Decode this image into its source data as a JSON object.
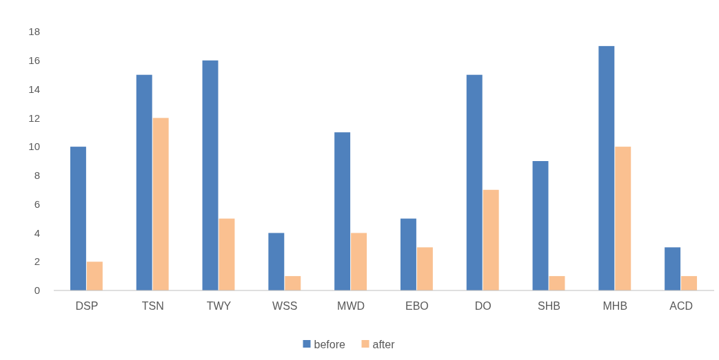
{
  "chart_data": {
    "type": "bar",
    "categories": [
      "DSP",
      "TSN",
      "TWY",
      "WSS",
      "MWD",
      "EBO",
      "DO",
      "SHB",
      "MHB",
      "ACD"
    ],
    "series": [
      {
        "name": "before",
        "color": "#4f81bd",
        "values": [
          10,
          15,
          16,
          4,
          11,
          5,
          15,
          9,
          17,
          3
        ]
      },
      {
        "name": "after",
        "color": "#fac090",
        "values": [
          2,
          12,
          5,
          1,
          4,
          3,
          7,
          1,
          10,
          1
        ]
      }
    ],
    "ylim": [
      0,
      18
    ],
    "yticks": [
      0,
      2,
      4,
      6,
      8,
      10,
      12,
      14,
      16,
      18
    ],
    "grid": false,
    "legend": "bottom"
  }
}
